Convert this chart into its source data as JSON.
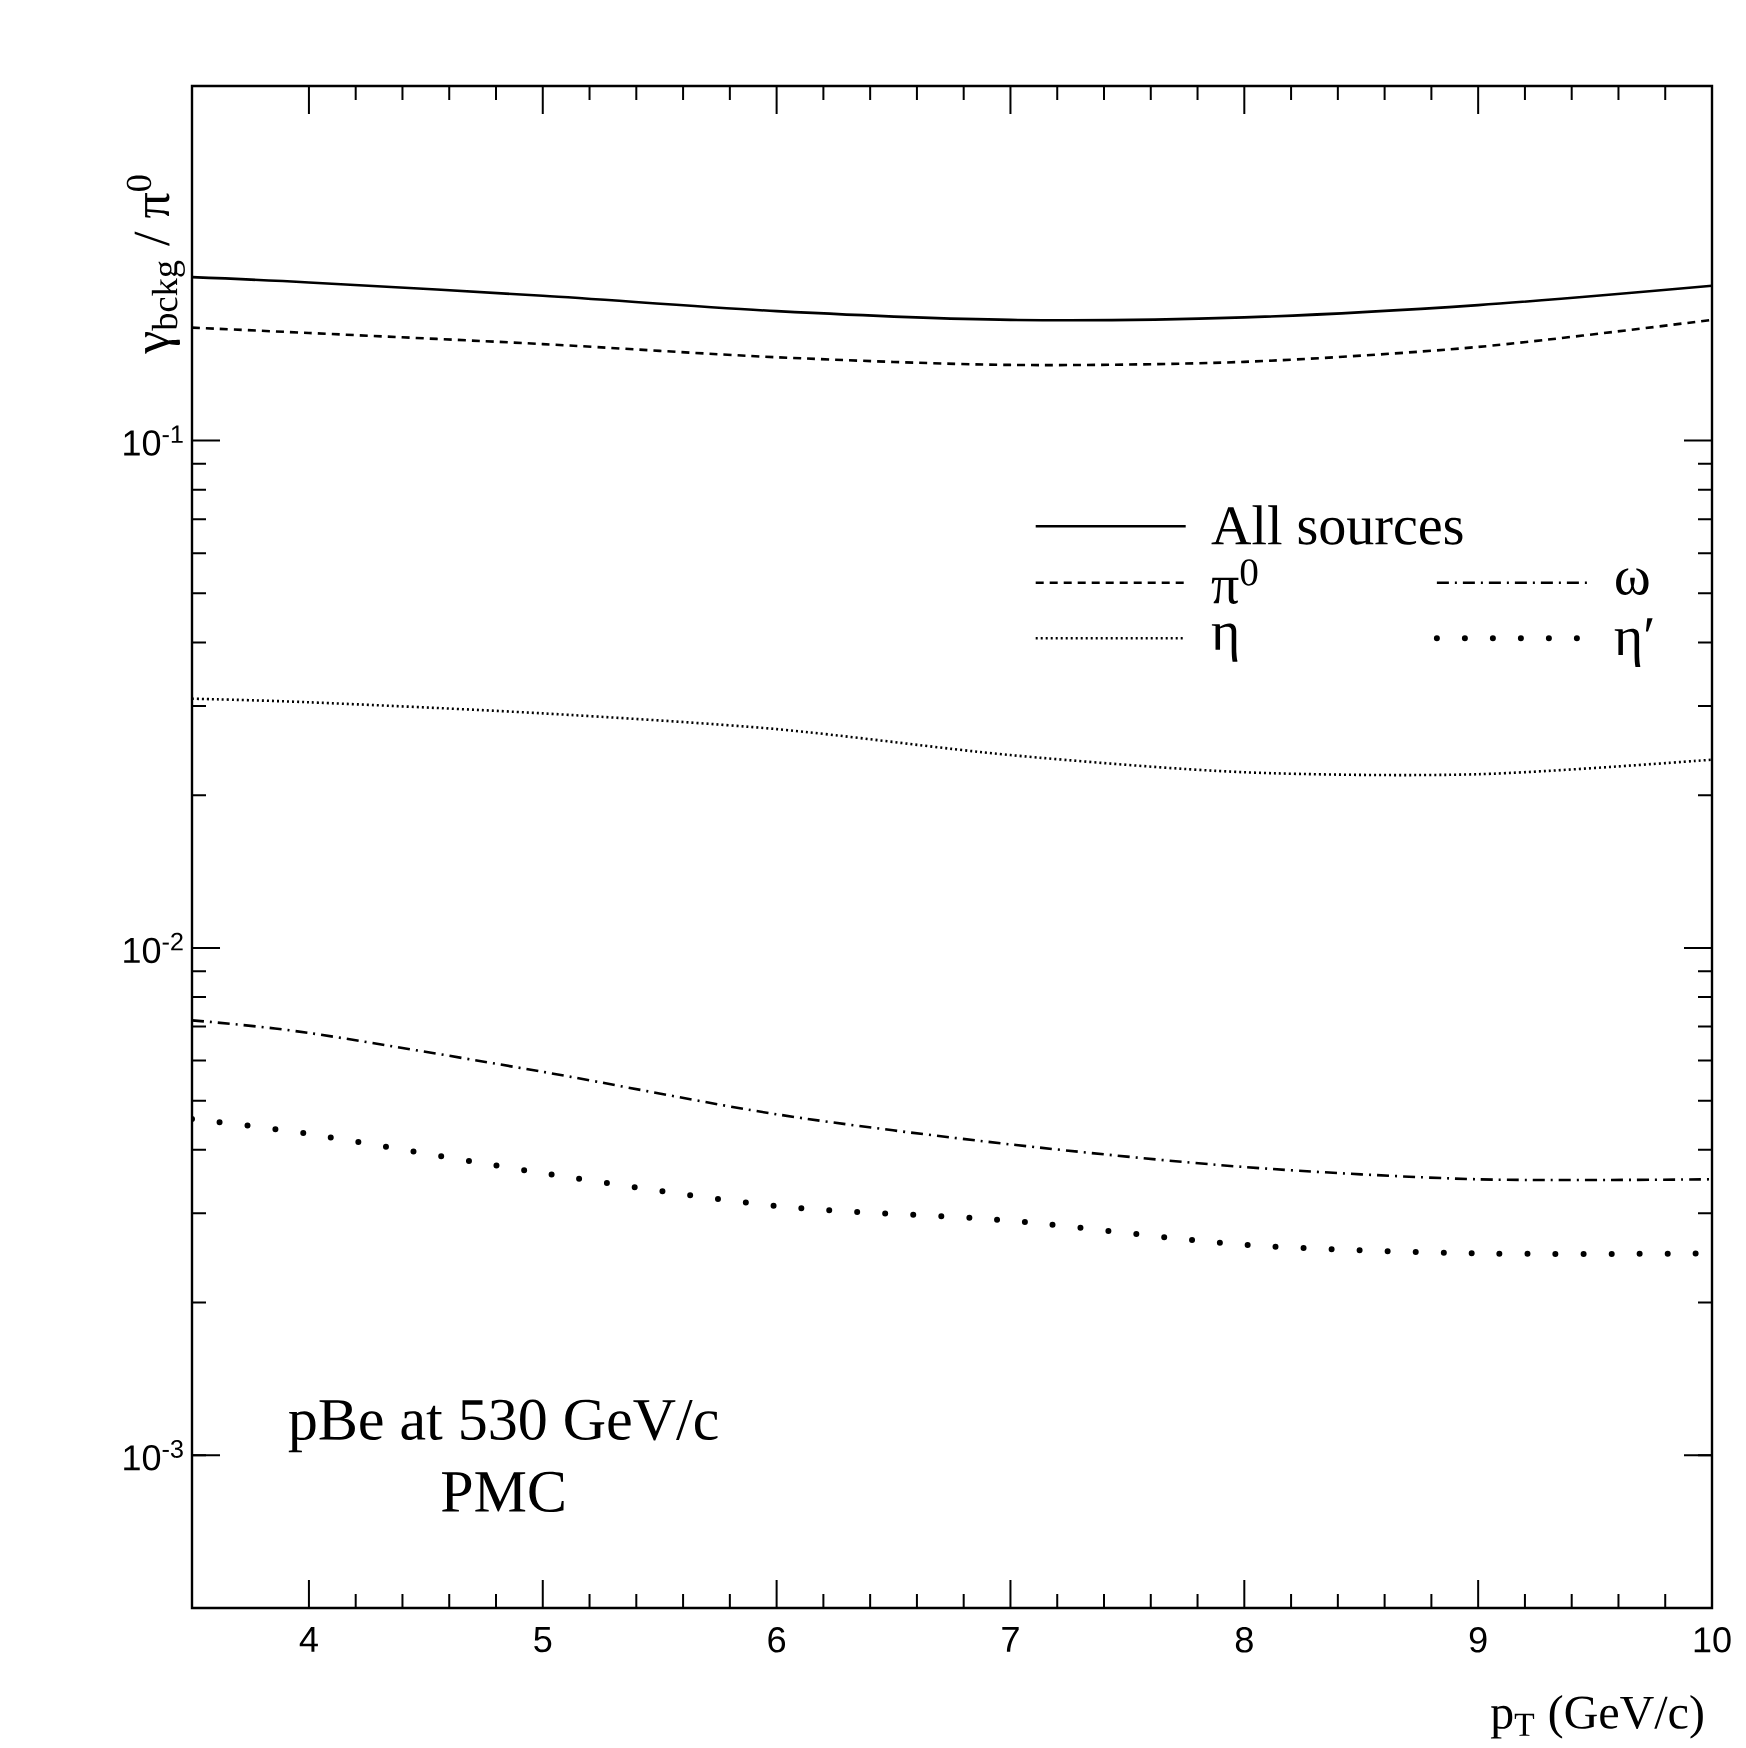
{
  "chart_data": {
    "type": "line",
    "xlabel": "p$_{T}$ (GeV/c)",
    "ylabel": "γ$_{bckg}$ / π$^{0}$",
    "x": [
      3.5,
      4,
      5,
      6,
      7,
      8,
      9,
      10
    ],
    "series": [
      {
        "name": "All sources",
        "color": "#000000",
        "line_style": "solid",
        "values": [
          0.21,
          0.205,
          0.193,
          0.18,
          0.173,
          0.175,
          0.185,
          0.202
        ]
      },
      {
        "name": "π$^{0}$",
        "color": "#000000",
        "line_style": "dashed",
        "values": [
          0.167,
          0.163,
          0.155,
          0.146,
          0.141,
          0.143,
          0.153,
          0.173
        ]
      },
      {
        "name": "ω",
        "color": "#000000",
        "line_style": "dashdotted",
        "values": [
          0.0072,
          0.0068,
          0.0057,
          0.0047,
          0.0041,
          0.0037,
          0.0035,
          0.0035
        ]
      },
      {
        "name": "η",
        "color": "#000000",
        "line_style": "dotted",
        "values": [
          0.031,
          0.0305,
          0.029,
          0.027,
          0.024,
          0.0222,
          0.022,
          0.0235
        ]
      },
      {
        "name": "η′",
        "color": "#000000",
        "line_style": "loosely dotted",
        "values": [
          0.0046,
          0.0043,
          0.0036,
          0.0031,
          0.0029,
          0.0026,
          0.0025,
          0.0025
        ]
      }
    ],
    "log": "y",
    "xlim": [
      3.5,
      10
    ],
    "ylim": [
      0.0005,
      0.5
    ],
    "xticks": [
      4,
      5,
      6,
      7,
      8,
      9,
      10
    ],
    "yticks": [
      {
        "value": 0.001,
        "label": "10$^{-3}$"
      },
      {
        "value": 0.01,
        "label": "10$^{-2}$"
      },
      {
        "value": 0.1,
        "label": "10$^{-1}$"
      }
    ],
    "legend": "right",
    "annotations": [
      "pBe at 530 GeV/c",
      "PMC"
    ]
  }
}
